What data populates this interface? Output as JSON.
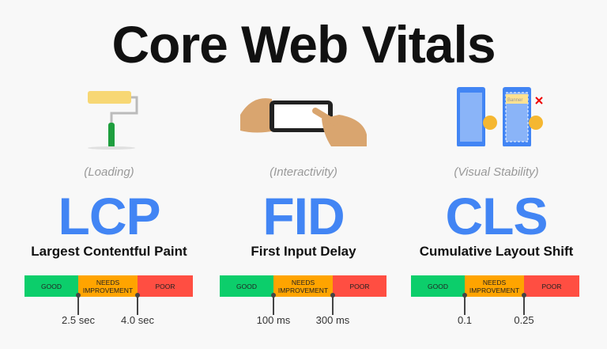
{
  "title": "Core Web Vitals",
  "colors": {
    "good": "#0cce6b",
    "needs_improvement": "#ffa400",
    "poor": "#ff4e42",
    "accent": "#4285f4"
  },
  "segments": {
    "good": "GOOD",
    "needs_improvement": "NEEDS IMPROVEMENT",
    "poor": "POOR"
  },
  "metrics": [
    {
      "icon": "paint-roller-icon",
      "category": "(Loading)",
      "acronym": "LCP",
      "name": "Largest Contentful Paint",
      "thresholds": [
        "2.5 sec",
        "4.0 sec"
      ]
    },
    {
      "icon": "hand-tapping-phone-icon",
      "category": "(Interactivity)",
      "acronym": "FID",
      "name": "First Input Delay",
      "thresholds": [
        "100 ms",
        "300 ms"
      ]
    },
    {
      "icon": "layout-shift-phones-icon",
      "category": "(Visual Stability)",
      "acronym": "CLS",
      "name": "Cumulative Layout Shift",
      "thresholds": [
        "0.1",
        "0.25"
      ],
      "banner_label": "Banner"
    }
  ]
}
